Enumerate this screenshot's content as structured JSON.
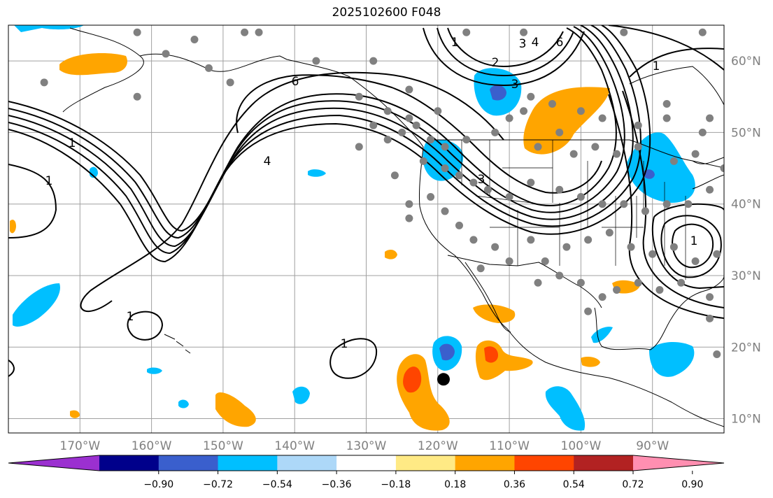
{
  "title": "2025102600 F048",
  "latitudes": [
    {
      "label": "10°N",
      "value": 10
    },
    {
      "label": "20°N",
      "value": 20
    },
    {
      "label": "30°N",
      "value": 30
    },
    {
      "label": "40°N",
      "value": 40
    },
    {
      "label": "50°N",
      "value": 50
    },
    {
      "label": "60°N",
      "value": 60
    }
  ],
  "longitudes": [
    {
      "label": "170°W",
      "value": -170
    },
    {
      "label": "160°W",
      "value": -160
    },
    {
      "label": "150°W",
      "value": -150
    },
    {
      "label": "140°W",
      "value": -140
    },
    {
      "label": "130°W",
      "value": -130
    },
    {
      "label": "120°W",
      "value": -120
    },
    {
      "label": "110°W",
      "value": -110
    },
    {
      "label": "100°W",
      "value": -100
    },
    {
      "label": "90°W",
      "value": -90
    }
  ],
  "map_extent": {
    "lon_min": -180,
    "lon_max": -80,
    "lat_min": 8,
    "lat_max": 65
  },
  "colorbar": {
    "colors": [
      "#9b30d0",
      "#00008b",
      "#3a5fcd",
      "#00bfff",
      "#add8f8",
      "#ffffff",
      "#ffea85",
      "#ffa500",
      "#ff4500",
      "#b22222",
      "#ff8fb1"
    ],
    "ticks": [
      "−0.90",
      "−0.72",
      "−0.54",
      "−0.36",
      "−0.18",
      "0.18",
      "0.36",
      "0.54",
      "0.72",
      "0.90"
    ]
  },
  "contour_labels": [
    "6",
    "4",
    "3",
    "3",
    "4",
    "6",
    "1",
    "1",
    "1",
    "1",
    "1",
    "1",
    "3",
    "2",
    "1"
  ],
  "marker": {
    "lon": -119.2,
    "lat": 15.5
  }
}
